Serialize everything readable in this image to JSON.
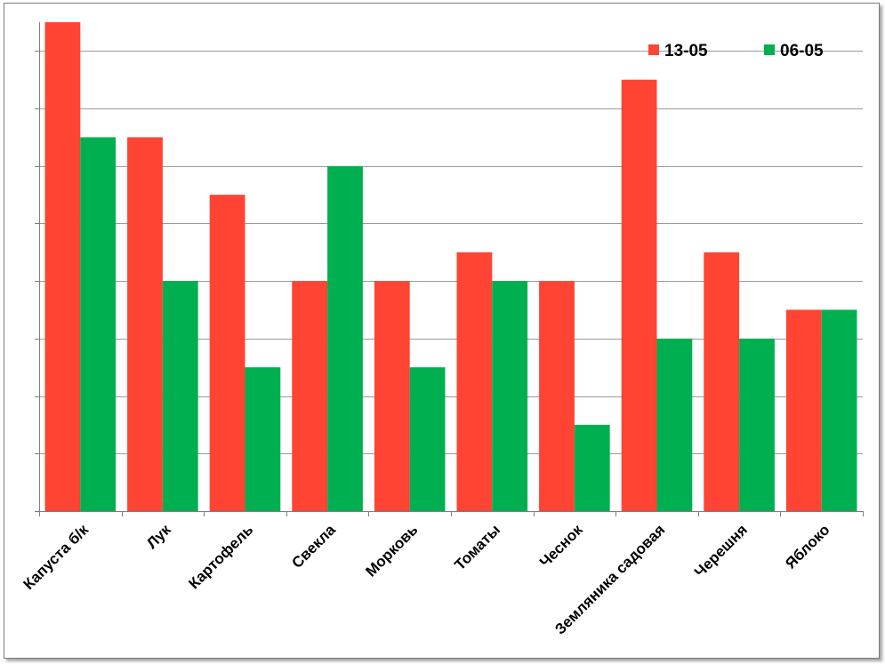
{
  "chart_data": {
    "type": "bar",
    "title": "",
    "xlabel": "",
    "ylabel": "",
    "ylim": [
      0,
      85
    ],
    "ytick_step": 10,
    "y_tick_labels_shown": false,
    "grid": true,
    "legend_position": "top-right",
    "categories": [
      "Капуста б/к",
      "Лук",
      "Картофель",
      "Свекла",
      "Морковь",
      "Томаты",
      "Чеснок",
      "Земляника садовая",
      "Черешня",
      "Яблоко"
    ],
    "series": [
      {
        "name": "13-05",
        "color": "#ff4433",
        "values": [
          85,
          65,
          55,
          40,
          40,
          45,
          40,
          75,
          45,
          35
        ]
      },
      {
        "name": "06-05",
        "color": "#00b050",
        "values": [
          65,
          40,
          25,
          60,
          25,
          40,
          15,
          30,
          30,
          35
        ]
      }
    ]
  }
}
